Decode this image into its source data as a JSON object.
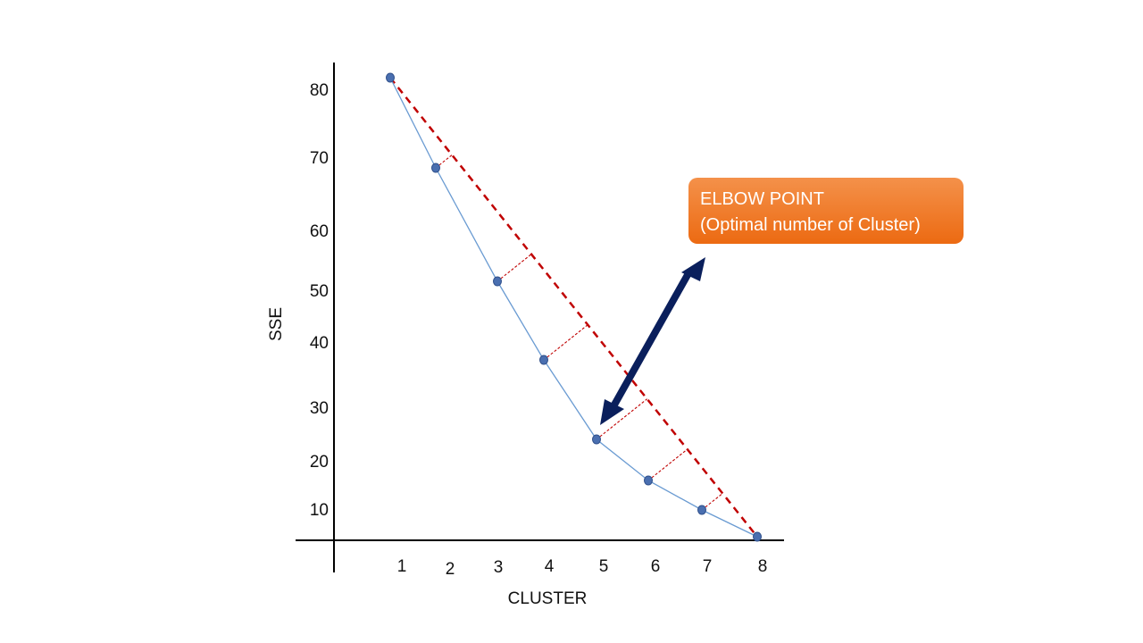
{
  "chart_data": {
    "type": "line",
    "xlabel": "CLUSTER",
    "ylabel": "SSE",
    "x": [
      1,
      2,
      3,
      4,
      5,
      6,
      7,
      8
    ],
    "y_ticks": [
      "80",
      "70",
      "60",
      "50",
      "40",
      "30",
      "20",
      "10"
    ],
    "x_ticks": [
      "1",
      "2",
      "3",
      "4",
      "5",
      "6",
      "7",
      "8"
    ],
    "series": [
      {
        "values": [
          82,
          68,
          51,
          37,
          23,
          16,
          10,
          4
        ]
      }
    ],
    "ylim": [
      0,
      85
    ],
    "grid": false,
    "annotation": {
      "title": "ELBOW POINT",
      "subtitle": "(Optimal number of Cluster)",
      "target_x": 5
    },
    "colors": {
      "series_line": "#6a9bd2",
      "point_fill": "#4a6fb0",
      "point_stroke": "#2f4f8a",
      "chord": "#c00000",
      "arrow": "#0a1f5c",
      "callout_top": "#f4914a",
      "callout_bottom": "#ec6a12"
    }
  }
}
